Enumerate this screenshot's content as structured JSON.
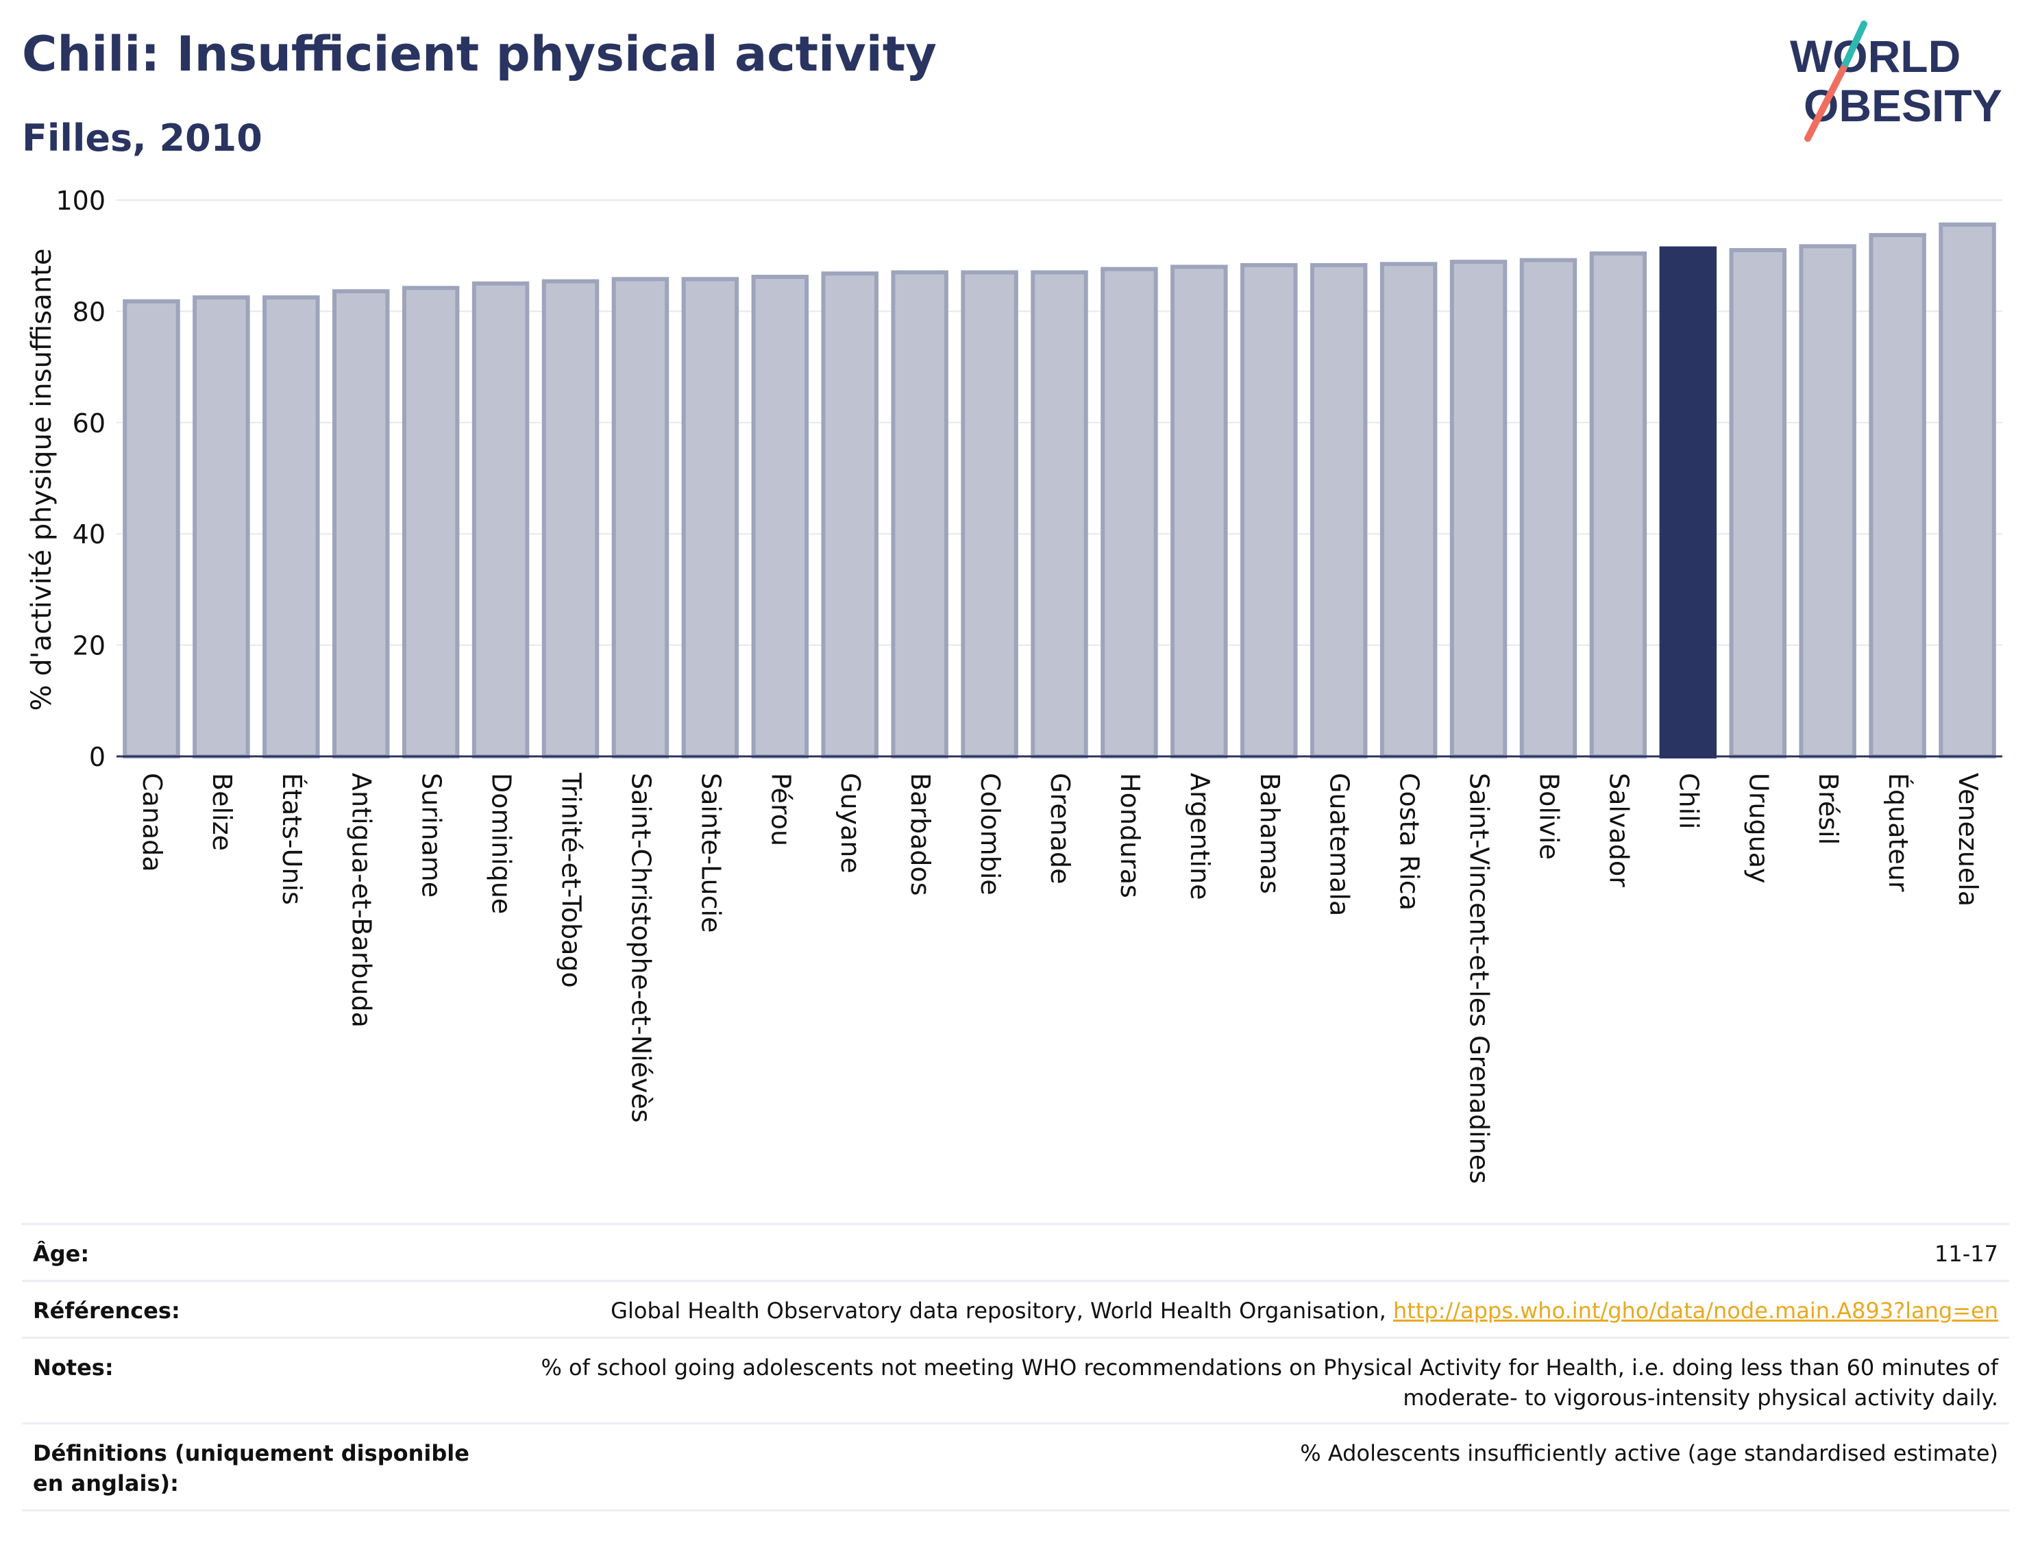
{
  "header": {
    "title": "Chili: Insufficient physical activity",
    "subtitle": "Filles, 2010"
  },
  "logo": {
    "line1": "WORLD",
    "line2": "OBESITY",
    "icon": "world-obesity-slash-logo"
  },
  "colors": {
    "bar": "#bfc3d1",
    "bar_border": "#9ea4bb",
    "highlight": "#293462",
    "text": "#2a3461",
    "link": "#e8a920"
  },
  "chart_data": {
    "type": "bar",
    "title": "Chili: Insufficient physical activity",
    "subtitle": "Filles, 2010",
    "ylabel": "% d'activité physique insuffisante",
    "xlabel": "",
    "ylim": [
      0,
      100
    ],
    "yticks": [
      0,
      20,
      40,
      60,
      80,
      100
    ],
    "grid": true,
    "highlight": "Chili",
    "categories": [
      "Canada",
      "Belize",
      "États-Unis",
      "Antigua-et-Barbuda",
      "Suriname",
      "Dominique",
      "Trinité-et-Tobago",
      "Saint-Christophe-et-Niévès",
      "Sainte-Lucie",
      "Pérou",
      "Guyane",
      "Barbados",
      "Colombie",
      "Grenade",
      "Honduras",
      "Argentine",
      "Bahamas",
      "Guatemala",
      "Costa Rica",
      "Saint-Vincent-et-les Grenadines",
      "Bolivie",
      "Salvador",
      "Chili",
      "Uruguay",
      "Brésil",
      "Équateur",
      "Venezuela"
    ],
    "values": [
      81.8,
      82.5,
      82.5,
      83.6,
      84.2,
      85.0,
      85.4,
      85.8,
      85.8,
      86.2,
      86.8,
      87.0,
      87.0,
      87.0,
      87.6,
      88.0,
      88.3,
      88.3,
      88.5,
      88.9,
      89.2,
      90.4,
      91.3,
      91.0,
      91.7,
      93.7,
      95.6
    ]
  },
  "info": {
    "age_label": "Âge:",
    "age_value": "11-17",
    "refs_label": "Références:",
    "refs_text": "Global Health Observatory data repository, World Health Organisation, ",
    "refs_link": "http://apps.who.int/gho/data/node.main.A893?lang=en",
    "notes_label": "Notes:",
    "notes_line1": "% of school going adolescents not meeting WHO recommendations on Physical Activity for Health, i.e. doing less than 60 minutes of",
    "notes_line2": "moderate- to vigorous-intensity physical activity daily.",
    "defs_label": "Définitions (uniquement disponible en anglais):",
    "defs_value": "% Adolescents insufficiently active (age standardised estimate)"
  }
}
